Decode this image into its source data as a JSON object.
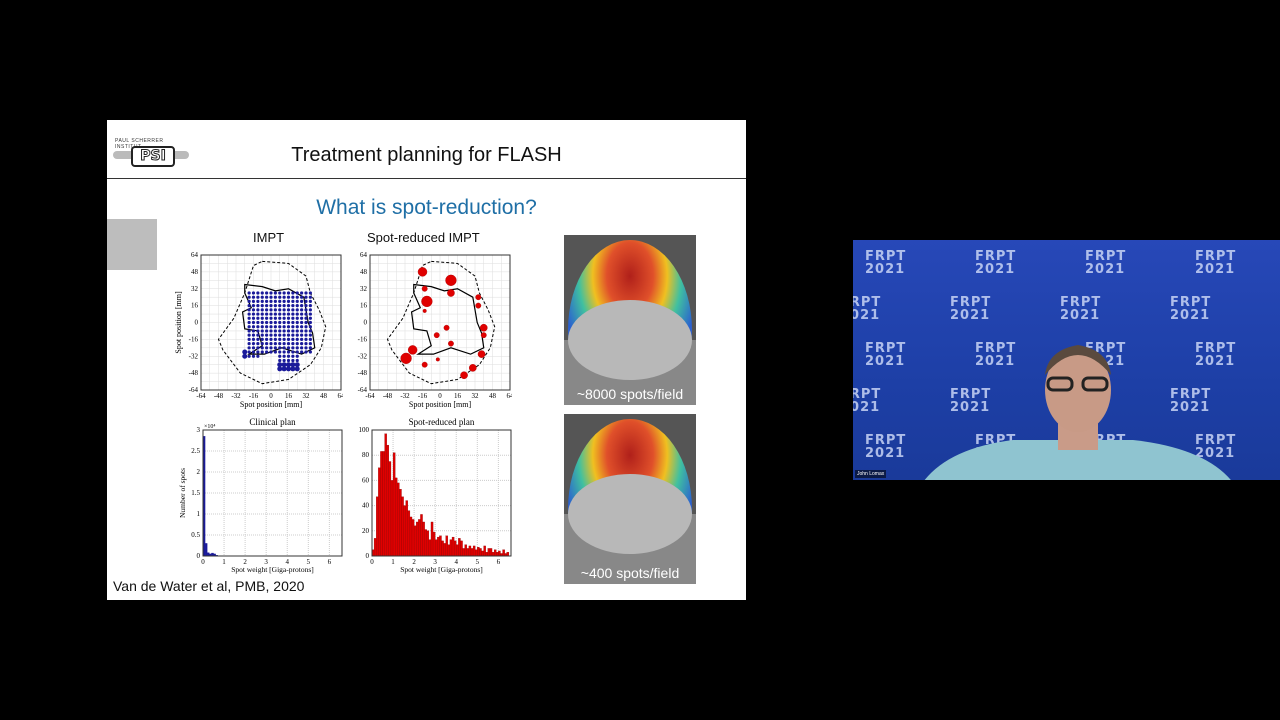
{
  "slide": {
    "logo_text": "PAUL SCHERRER INSTITUT",
    "logo_mark": "PSI",
    "title": "Treatment planning for FLASH",
    "subtitle": "What is spot-reduction?",
    "citation": "Van de Water et al, PMB, 2020",
    "image_captions": [
      "~8000 spots/field",
      "~400 spots/field"
    ],
    "colors": {
      "subtitle": "#1f6fa6",
      "impt": "#1a1a9a",
      "reduced": "#e00000"
    }
  },
  "video": {
    "participant_name": "John Lomax",
    "background_text": "FRPT 2021"
  },
  "chart_data": [
    {
      "type": "scatter",
      "title": "IMPT",
      "xlabel": "Spot position [mm]",
      "ylabel": "Spot position [mm]",
      "xlim": [
        -64,
        64
      ],
      "ylim": [
        -64,
        64
      ],
      "ticks": [
        -64,
        -48,
        -32,
        -16,
        0,
        16,
        32,
        48,
        64
      ],
      "grid": true,
      "series_color": "#1a1a9a"
    },
    {
      "type": "scatter",
      "title": "Spot-reduced IMPT",
      "xlabel": "Spot position [mm]",
      "ylabel": "",
      "xlim": [
        -64,
        64
      ],
      "ylim": [
        -64,
        64
      ],
      "ticks": [
        -64,
        -48,
        -32,
        -16,
        0,
        16,
        32,
        48,
        64
      ],
      "grid": true,
      "points": [
        [
          -16,
          48,
          5
        ],
        [
          10,
          40,
          6
        ],
        [
          -14,
          32,
          3
        ],
        [
          10,
          28,
          4
        ],
        [
          -12,
          20,
          6
        ],
        [
          35,
          24,
          3
        ],
        [
          35,
          16,
          3
        ],
        [
          -14,
          11,
          2
        ],
        [
          40,
          -5,
          4
        ],
        [
          6,
          -5,
          3
        ],
        [
          -3,
          -12,
          3
        ],
        [
          40,
          -12,
          3
        ],
        [
          10,
          -20,
          3
        ],
        [
          -25,
          -26,
          5
        ],
        [
          -31,
          -34,
          6
        ],
        [
          38,
          -30,
          4
        ],
        [
          -2,
          -35,
          2
        ],
        [
          30,
          -43,
          4
        ],
        [
          -14,
          -40,
          3
        ],
        [
          22,
          -50,
          4
        ]
      ]
    },
    {
      "type": "bar",
      "title": "Clinical plan",
      "xlabel": "Spot weight [Giga-protons]",
      "ylabel": "Number of spots",
      "y_multiplier": "×10⁴",
      "xlim": [
        0,
        6.6
      ],
      "ylim": [
        0,
        3
      ],
      "xticks": [
        0,
        1,
        2,
        3,
        4,
        5,
        6
      ],
      "yticks": [
        0,
        0.5,
        1,
        1.5,
        2,
        2.5,
        3
      ],
      "bin_width": 0.1,
      "x": [
        0.05,
        0.15,
        0.25,
        0.35,
        0.45,
        0.55,
        0.65
      ],
      "values": [
        2.85,
        0.3,
        0.08,
        0.05,
        0.07,
        0.05,
        0.02
      ]
    },
    {
      "type": "bar",
      "title": "Spot-reduced plan",
      "xlabel": "Spot weight [Giga-protons]",
      "ylabel": "",
      "xlim": [
        0,
        6.6
      ],
      "ylim": [
        0,
        100
      ],
      "xticks": [
        0,
        1,
        2,
        3,
        4,
        5,
        6
      ],
      "yticks": [
        0,
        20,
        40,
        60,
        80,
        100
      ],
      "bin_width": 0.1,
      "x_start": 0.05,
      "values": [
        5,
        14,
        47,
        70,
        83,
        83,
        97,
        88,
        75,
        60,
        82,
        62,
        58,
        53,
        47,
        40,
        44,
        36,
        31,
        29,
        24,
        27,
        29,
        33,
        27,
        21,
        20,
        13,
        27,
        19,
        13,
        15,
        16,
        12,
        10,
        16,
        9,
        13,
        15,
        12,
        9,
        14,
        12,
        6,
        9,
        6,
        8,
        6,
        8,
        5,
        7,
        6,
        4,
        8,
        3,
        6,
        6,
        3,
        5,
        3,
        4,
        2,
        5,
        2,
        3
      ]
    }
  ]
}
